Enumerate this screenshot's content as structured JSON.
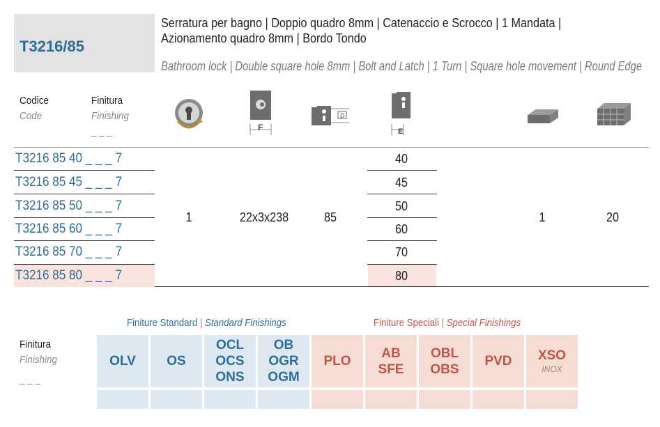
{
  "product": {
    "code": "T3216/85",
    "title_it": "Serratura per bagno | Doppio quadro 8mm | Catenaccio e Scrocco | 1 Mandata | Azionamento quadro 8mm | Bordo Tondo",
    "title_en": "Bathroom lock | Double square hole 8mm | Bolt and Latch | 1 Turn | Square hole movement | Round Edge"
  },
  "headers": {
    "code_it": "Codice",
    "code_en": "Code",
    "finish_it": "Finitura",
    "finish_en": "Finishing",
    "finish_placeholder": "_ _ _",
    "icons": [
      "turn-icon",
      "faceplate-f-icon",
      "backset-d-icon",
      "entrance-e-icon",
      "packaging-icon",
      "carton-icon"
    ],
    "f_label": "F",
    "e_label": "E"
  },
  "rows": [
    {
      "code": "T3216 85 40 _ _ _ 7",
      "e": "40"
    },
    {
      "code": "T3216 85 45 _ _ _ 7",
      "e": "45"
    },
    {
      "code": "T3216 85 50 _ _ _ 7",
      "e": "50"
    },
    {
      "code": "T3216 85 60 _ _ _ 7",
      "e": "60"
    },
    {
      "code": "T3216 85 70 _ _ _ 7",
      "e": "70"
    },
    {
      "code": "T3216 85 80 _ _ _ 7",
      "e": "80"
    }
  ],
  "shared_values": {
    "turns": "1",
    "faceplate": "22x3x238",
    "backset": "85",
    "pack": "1",
    "carton": "20"
  },
  "finishings": {
    "label_it": "Finitura",
    "label_en": "Finishing",
    "placeholder": "_ _ _",
    "standard_it": "Finiture Standard",
    "standard_en": "Standard Finishings",
    "special_it": "Finiture Speciali",
    "special_en": "Special Finishings",
    "separator": "|",
    "standard": [
      {
        "lines": [
          "OLV"
        ]
      },
      {
        "lines": [
          "OS"
        ]
      },
      {
        "lines": [
          "OCL",
          "OCS",
          "ONS"
        ]
      },
      {
        "lines": [
          "OB",
          "OGR",
          "OGM"
        ]
      }
    ],
    "special": [
      {
        "lines": [
          "PLO"
        ]
      },
      {
        "lines": [
          "AB",
          "SFE"
        ]
      },
      {
        "lines": [
          "OBL",
          "OBS"
        ]
      },
      {
        "lines": [
          "PVD"
        ]
      },
      {
        "lines": [
          "XSO"
        ],
        "note": "INOX"
      }
    ]
  },
  "colors": {
    "accent_blue": "#2c6f96",
    "accent_red": "#c0554a",
    "std_bg": "#dde8f0",
    "spc_bg": "#f6ddd4",
    "highlight": "#f9e4dd"
  }
}
